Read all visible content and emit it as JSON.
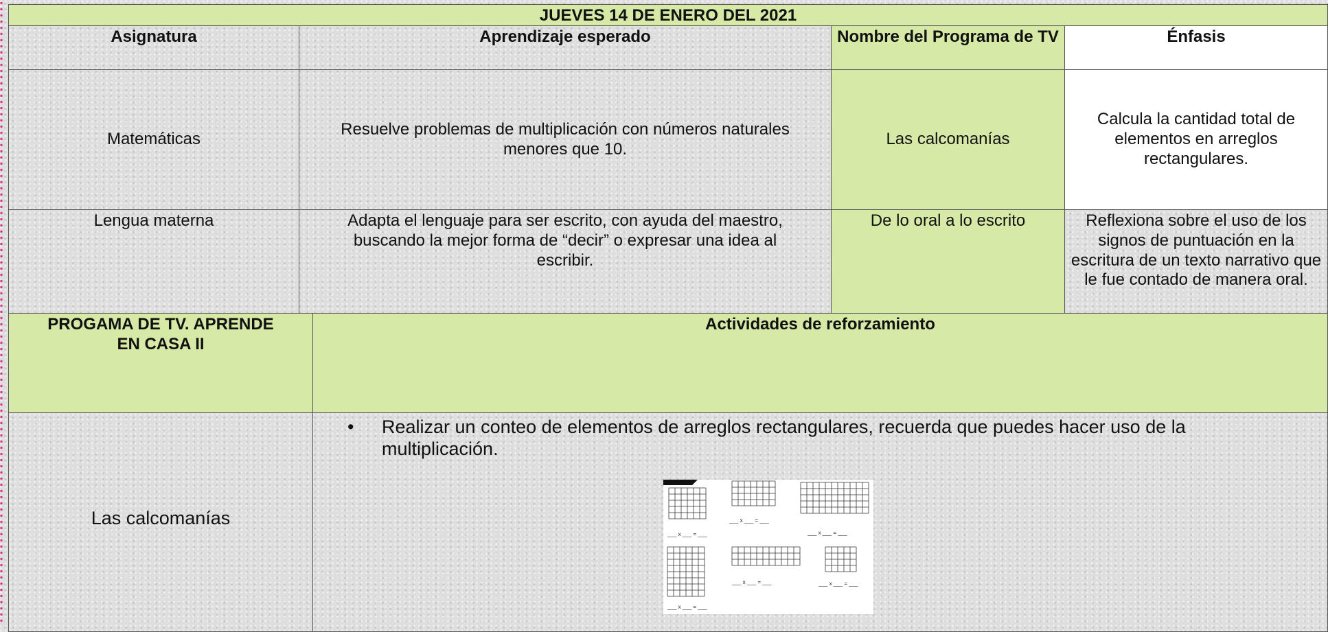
{
  "header": {
    "title": "JUEVES 14 DE ENERO DEL 2021"
  },
  "table": {
    "columns": [
      "Asignatura",
      "Aprendizaje esperado",
      "Nombre del Programa de TV",
      "Énfasis"
    ],
    "rows": [
      [
        "Matemáticas",
        "Resuelve problemas de multiplicación con números naturales menores que 10.",
        "Las calcomanías",
        "Calcula la cantidad total de elementos en arreglos rectangulares."
      ],
      [
        "Lengua materna",
        "Adapta el lenguaje para ser escrito, con ayuda del maestro, buscando la mejor forma de “decir” o expresar una idea al escribir.",
        "De lo oral a lo escrito",
        "Reflexiona sobre el uso de los signos de puntuación en la escritura de un texto narrativo que le fue contado de manera oral."
      ]
    ]
  },
  "activities": {
    "columns": [
      "PROGAMA DE TV. APRENDE EN CASA II",
      "Actividades de reforzamiento"
    ],
    "rows": [
      {
        "program": "Las calcomanías",
        "bullet": "Realizar un conteo de elementos de arreglos rectangulares, recuerda que puedes hacer uso de la multiplicación.",
        "worksheet_equation": "___ x ___ = ___"
      }
    ]
  }
}
